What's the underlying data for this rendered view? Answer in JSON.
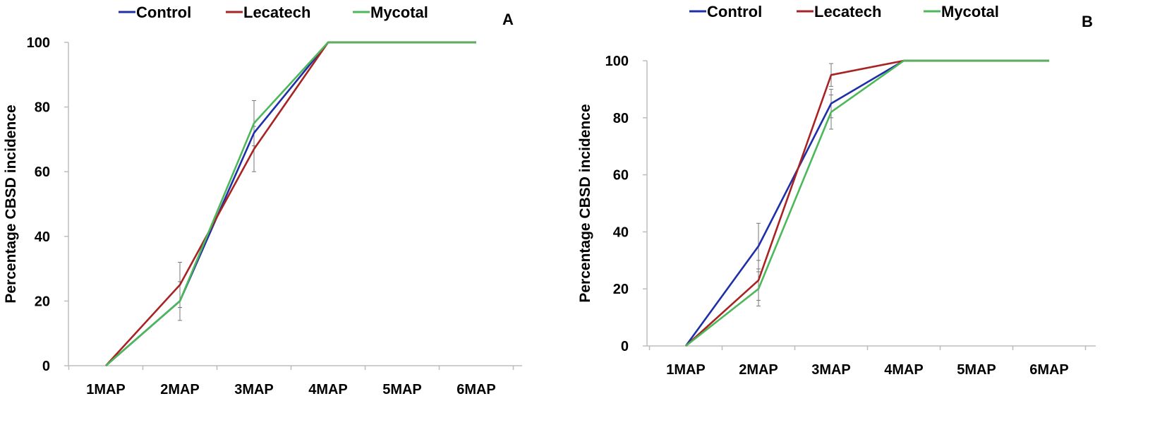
{
  "chart_data": [
    {
      "type": "line",
      "panel_label": "A",
      "ylabel": "Percentage CBSD incidence",
      "xlabel": "",
      "categories": [
        "1MAP",
        "2MAP",
        "3MAP",
        "4MAP",
        "5MAP",
        "6MAP"
      ],
      "ylim": [
        0,
        100
      ],
      "yticks": [
        0,
        20,
        40,
        60,
        80,
        100
      ],
      "legend_position": "top",
      "series": [
        {
          "name": "Control",
          "color": "#1f2fa8",
          "values": [
            0,
            20,
            72,
            100,
            100,
            100
          ],
          "errors": [
            0,
            0,
            0,
            0,
            0,
            0
          ]
        },
        {
          "name": "Lecatech",
          "color": "#a82323",
          "values": [
            0,
            25,
            67,
            100,
            100,
            100
          ],
          "errors": [
            0,
            7,
            7,
            0,
            0,
            0
          ]
        },
        {
          "name": "Mycotal",
          "color": "#4cb85a",
          "values": [
            0,
            20,
            75,
            100,
            100,
            100
          ],
          "errors": [
            0,
            6,
            7,
            0,
            0,
            0
          ]
        }
      ]
    },
    {
      "type": "line",
      "panel_label": "B",
      "ylabel": "Percentage CBSD incidence",
      "xlabel": "",
      "categories": [
        "1MAP",
        "2MAP",
        "3MAP",
        "4MAP",
        "5MAP",
        "6MAP"
      ],
      "ylim": [
        0,
        100
      ],
      "yticks": [
        0,
        20,
        40,
        60,
        80,
        100
      ],
      "legend_position": "top",
      "series": [
        {
          "name": "Control",
          "color": "#1f2fa8",
          "values": [
            0,
            35,
            85,
            100,
            100,
            100
          ],
          "errors": [
            0,
            8,
            5,
            0,
            0,
            0
          ]
        },
        {
          "name": "Lecatech",
          "color": "#a82323",
          "values": [
            0,
            23,
            95,
            100,
            100,
            100
          ],
          "errors": [
            0,
            7,
            4,
            0,
            0,
            0
          ]
        },
        {
          "name": "Mycotal",
          "color": "#4cb85a",
          "values": [
            0,
            20,
            82,
            100,
            100,
            100
          ],
          "errors": [
            0,
            6,
            6,
            0,
            0,
            0
          ]
        }
      ]
    }
  ]
}
